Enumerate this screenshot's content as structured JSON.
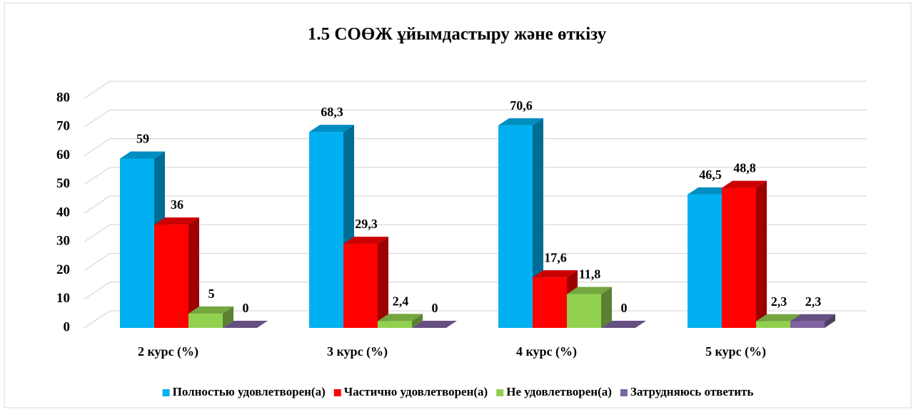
{
  "chart_data": {
    "type": "bar3d",
    "title": "1.5 СОӨЖ ұйымдастыру және өткізу",
    "categories": [
      "2 курс (%)",
      "3 курс (%)",
      "4 курс (%)",
      "5 курс (%)"
    ],
    "series": [
      {
        "name": "Полностью удовлетворен(а)",
        "color": "#00b0f0",
        "values": [
          59,
          68.3,
          70.6,
          46.5
        ],
        "value_labels": [
          "59",
          "68,3",
          "70,6",
          "46,5"
        ]
      },
      {
        "name": "Частично удовлетворен(а)",
        "color": "#ff0000",
        "values": [
          36,
          29.3,
          17.6,
          48.8
        ],
        "value_labels": [
          "36",
          "29,3",
          "17,6",
          "48,8"
        ]
      },
      {
        "name": "Не удовлетворен(а)",
        "color": "#92d050",
        "values": [
          5,
          2.4,
          11.8,
          2.3
        ],
        "value_labels": [
          "5",
          "2,4",
          "11,8",
          "2,3"
        ]
      },
      {
        "name": "Затрудняюсь ответить",
        "color": "#8064a2",
        "values": [
          0,
          0,
          0,
          2.3
        ],
        "value_labels": [
          "0",
          "0",
          "0",
          "2,3"
        ]
      }
    ],
    "ylim": [
      0,
      80
    ],
    "yticks": [
      0,
      10,
      20,
      30,
      40,
      50,
      60,
      70,
      80
    ],
    "grid": true,
    "legend": "bottom"
  }
}
